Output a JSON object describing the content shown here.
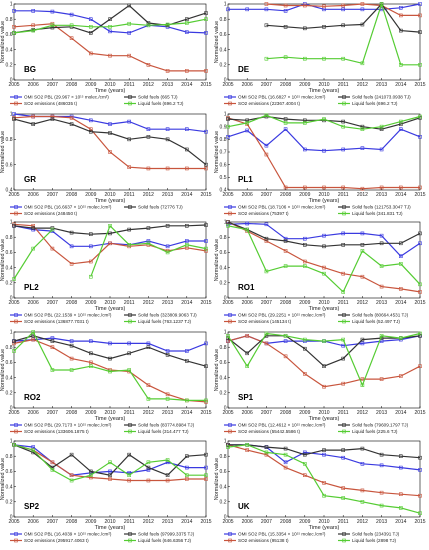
{
  "figure": {
    "ylabel": "Normalized value",
    "xlabel": "Time (years)",
    "colors": {
      "omi": "#3a3ae0",
      "so2": "#c8553d",
      "solid": "#333333",
      "liquid": "#55cc33"
    }
  },
  "chart_data": [
    {
      "type": "line",
      "panel": "BG",
      "x": [
        2005,
        2006,
        2007,
        2008,
        2009,
        2010,
        2011,
        2012,
        2013,
        2014,
        2015
      ],
      "ylim": [
        0,
        1
      ],
      "yticks": [
        "0",
        "0.2",
        "0.4",
        "0.6",
        "0.8",
        "1"
      ],
      "series": [
        {
          "key": "omi",
          "values": [
            0.91,
            0.91,
            0.9,
            0.86,
            0.8,
            0.64,
            0.62,
            0.72,
            0.7,
            0.63,
            0.62
          ],
          "legend": "OMI SO2 PBL (29.967 × 10¹⁵ molec./cm²)"
        },
        {
          "key": "so2",
          "values": [
            0.7,
            0.72,
            0.74,
            0.55,
            0.35,
            0.32,
            0.32,
            0.2,
            0.12,
            0.12,
            0.12
          ],
          "legend": "SO2 emissions (486035 t)"
        },
        {
          "key": "solid",
          "values": [
            0.62,
            0.66,
            0.69,
            0.7,
            0.62,
            0.8,
            0.98,
            0.75,
            0.72,
            0.8,
            0.88
          ],
          "legend": "Solid fuels (665 TJ)"
        },
        {
          "key": "liquid",
          "values": [
            0.62,
            0.65,
            0.72,
            0.72,
            0.7,
            0.7,
            0.74,
            0.72,
            0.73,
            0.75,
            0.8
          ],
          "legend": "Liquid fuels (696.2 TJ)"
        }
      ]
    },
    {
      "type": "line",
      "panel": "DE",
      "x": [
        2005,
        2006,
        2007,
        2008,
        2009,
        2010,
        2011,
        2012,
        2013,
        2014,
        2015
      ],
      "ylim": [
        0,
        1
      ],
      "yticks": [
        "0",
        "0.2",
        "0.4",
        "0.6",
        "0.8",
        "1"
      ],
      "series": [
        {
          "key": "omi",
          "values": [
            0.93,
            0.93,
            0.93,
            0.91,
            1.0,
            0.93,
            0.93,
            0.93,
            0.93,
            0.95,
            1.0
          ],
          "legend": "OMI SO2 PBL (16.6827 × 10¹⁵ molec./cm²)"
        },
        {
          "key": "so2",
          "values": [
            null,
            null,
            1.0,
            0.98,
            0.98,
            0.97,
            0.98,
            1.0,
            0.98,
            0.85,
            0.85
          ],
          "legend": "SO2 emissions (22367.4004 t)"
        },
        {
          "key": "solid",
          "values": [
            null,
            null,
            0.72,
            0.7,
            0.68,
            0.7,
            0.72,
            0.73,
            1.0,
            0.65,
            0.63
          ],
          "legend": "Solid fuels (241073.0938 TJ)"
        },
        {
          "key": "liquid",
          "values": [
            null,
            null,
            0.28,
            0.3,
            0.28,
            0.28,
            0.28,
            0.22,
            1.0,
            0.2,
            0.2
          ],
          "legend": "Liquid fuels (696.2 TJ)"
        }
      ]
    },
    {
      "type": "line",
      "panel": "GR",
      "x": [
        2005,
        2006,
        2007,
        2008,
        2009,
        2010,
        2011,
        2012,
        2013,
        2014,
        2015
      ],
      "ylim": [
        0.4,
        1
      ],
      "yticks": [
        "0.4",
        "0.6",
        "0.8",
        "1"
      ],
      "series": [
        {
          "key": "omi",
          "values": [
            1.0,
            0.98,
            0.98,
            0.98,
            0.95,
            0.92,
            0.94,
            0.88,
            0.88,
            0.88,
            0.86
          ],
          "legend": "OMI SO2 PBL (16.6637 × 10¹⁵ molec./cm²)"
        },
        {
          "key": "so2",
          "values": [
            0.97,
            0.98,
            0.98,
            0.97,
            0.88,
            0.7,
            0.58,
            0.57,
            0.57,
            0.57,
            0.57
          ],
          "legend": "SO2 emissions (248450 t)"
        },
        {
          "key": "solid",
          "values": [
            0.96,
            0.92,
            0.96,
            0.92,
            0.86,
            0.85,
            0.8,
            0.82,
            0.8,
            0.72,
            0.6
          ],
          "legend": "Solid fuels (72776 TJ)"
        }
      ]
    },
    {
      "type": "line",
      "panel": "PL1",
      "x": [
        2005,
        2006,
        2007,
        2008,
        2009,
        2010,
        2011,
        2012,
        2013,
        2014,
        2015
      ],
      "ylim": [
        0.4,
        1
      ],
      "yticks": [
        "0.4",
        "0.5",
        "0.6",
        "0.7",
        "0.8",
        "0.9",
        "1"
      ],
      "series": [
        {
          "key": "omi",
          "values": [
            0.82,
            0.87,
            0.75,
            0.88,
            0.72,
            0.71,
            0.72,
            0.73,
            0.72,
            0.88,
            0.82
          ],
          "legend": "OMI SO2 PBL (18.7106 × 10¹⁵ molec./cm²)"
        },
        {
          "key": "so2",
          "values": [
            0.97,
            0.92,
            0.68,
            0.42,
            0.42,
            0.42,
            0.42,
            0.41,
            0.42,
            0.42,
            0.42
          ],
          "legend": "SO2 emissions (75397 t)"
        },
        {
          "key": "solid",
          "values": [
            0.96,
            0.95,
            0.98,
            0.96,
            0.95,
            0.95,
            0.94,
            0.9,
            0.88,
            0.92,
            0.97
          ],
          "legend": "Solid fuels (121753.3047 TJ)"
        },
        {
          "key": "liquid",
          "values": [
            0.9,
            0.93,
            0.99,
            0.93,
            0.93,
            0.96,
            0.9,
            0.88,
            0.9,
            0.94,
            0.98
          ],
          "legend": "Liquid fuels (341.831 TJ)"
        }
      ]
    },
    {
      "type": "line",
      "panel": "PL2",
      "x": [
        2005,
        2006,
        2007,
        2008,
        2009,
        2010,
        2011,
        2012,
        2013,
        2014,
        2015
      ],
      "ylim": [
        0,
        1
      ],
      "yticks": [
        "0",
        "0.2",
        "0.4",
        "0.6",
        "0.8",
        "1"
      ],
      "series": [
        {
          "key": "omi",
          "values": [
            0.95,
            0.9,
            0.88,
            0.68,
            0.68,
            0.72,
            0.7,
            0.75,
            0.68,
            0.75,
            0.75
          ],
          "legend": "OMI SO2 PBL (22.1539 × 10¹⁵ molec./cm²)"
        },
        {
          "key": "so2",
          "values": [
            0.97,
            0.95,
            0.65,
            0.45,
            0.48,
            0.72,
            0.68,
            0.7,
            0.62,
            0.66,
            0.62
          ],
          "legend": "SO2 emissions (136877.7031 t)"
        },
        {
          "key": "solid",
          "values": [
            0.95,
            0.92,
            0.92,
            0.86,
            0.84,
            0.85,
            0.9,
            0.92,
            0.95,
            0.95,
            0.96
          ],
          "legend": "Solid fuels (323809.9063 TJ)"
        },
        {
          "key": "liquid",
          "values": [
            0.25,
            0.65,
            0.9,
            null,
            0.28,
            0.95,
            0.7,
            0.72,
            0.6,
            0.7,
            0.65
          ],
          "legend": "Liquid fuels (763.1237 TJ)"
        }
      ]
    },
    {
      "type": "line",
      "panel": "RO1",
      "x": [
        2005,
        2006,
        2007,
        2008,
        2009,
        2010,
        2011,
        2012,
        2013,
        2014,
        2015
      ],
      "ylim": [
        0,
        1
      ],
      "yticks": [
        "0",
        "0.2",
        "0.4",
        "0.6",
        "0.8",
        "1"
      ],
      "series": [
        {
          "key": "omi",
          "values": [
            0.97,
            0.98,
            0.97,
            0.78,
            0.78,
            0.82,
            0.85,
            0.85,
            0.82,
            0.55,
            0.72
          ],
          "legend": "OMI SO2 PBL (29.2251 × 10¹⁵ molec./cm²)"
        },
        {
          "key": "so2",
          "values": [
            1.0,
            0.88,
            0.75,
            0.62,
            0.48,
            0.4,
            0.32,
            0.28,
            0.15,
            0.12,
            0.08
          ],
          "legend": "SO2 emissions (145134 t)"
        },
        {
          "key": "solid",
          "values": [
            1.0,
            0.9,
            0.78,
            0.75,
            0.7,
            0.68,
            0.7,
            0.7,
            0.72,
            0.72,
            0.85
          ],
          "legend": "Solid fuels (80664.4531 TJ)"
        },
        {
          "key": "liquid",
          "values": [
            0.95,
            0.9,
            0.35,
            0.42,
            0.42,
            0.32,
            0.08,
            0.62,
            0.42,
            0.45,
            0.18
          ],
          "legend": "Liquid fuels (52.497 TJ)"
        }
      ]
    },
    {
      "type": "line",
      "panel": "RO2",
      "x": [
        2005,
        2006,
        2007,
        2008,
        2009,
        2010,
        2011,
        2012,
        2013,
        2014,
        2015
      ],
      "ylim": [
        0,
        1
      ],
      "yticks": [
        "0",
        "0.2",
        "0.4",
        "0.6",
        "0.8",
        "1"
      ],
      "series": [
        {
          "key": "omi",
          "values": [
            0.88,
            0.9,
            0.92,
            0.88,
            0.88,
            0.85,
            0.85,
            0.85,
            0.75,
            0.75,
            0.85
          ],
          "legend": "OMI SO2 PBL (29.7173 × 10¹⁵ molec./cm²)"
        },
        {
          "key": "so2",
          "values": [
            0.85,
            0.9,
            0.8,
            0.65,
            0.6,
            0.5,
            0.48,
            0.3,
            0.18,
            0.1,
            0.08
          ],
          "legend": "SO2 emissions (133606.1875 t)"
        },
        {
          "key": "solid",
          "values": [
            0.88,
            0.95,
            0.88,
            0.82,
            0.72,
            0.65,
            0.72,
            0.8,
            0.7,
            0.62,
            0.55
          ],
          "legend": "Solid fuels (83774.8984 TJ)"
        },
        {
          "key": "liquid",
          "values": [
            0.75,
            1.0,
            0.5,
            0.5,
            0.55,
            0.48,
            0.5,
            0.12,
            0.12,
            0.1,
            0.1
          ],
          "legend": "Liquid fuels (314.477 TJ)"
        }
      ]
    },
    {
      "type": "line",
      "panel": "SP1",
      "x": [
        2005,
        2006,
        2007,
        2008,
        2009,
        2010,
        2011,
        2012,
        2013,
        2014,
        2015
      ],
      "ylim": [
        0,
        1
      ],
      "yticks": [
        "0",
        "0.2",
        "0.4",
        "0.6",
        "0.8",
        "1"
      ],
      "series": [
        {
          "key": "omi",
          "values": [
            0.88,
            0.95,
            0.85,
            0.88,
            0.88,
            0.88,
            0.82,
            0.85,
            0.88,
            0.9,
            0.95
          ],
          "legend": "OMI SO2 PBL (12.4612 × 10¹⁵ molec./cm²)"
        },
        {
          "key": "so2",
          "values": [
            0.88,
            0.95,
            0.85,
            0.68,
            0.45,
            0.28,
            0.32,
            0.38,
            0.38,
            0.42,
            0.55
          ],
          "legend": "SO2 emissions (55442.5586 t)"
        },
        {
          "key": "solid",
          "values": [
            0.92,
            0.72,
            0.95,
            0.95,
            0.78,
            0.55,
            0.65,
            0.9,
            0.92,
            0.92,
            0.95
          ],
          "legend": "Solid fuels (79609.1797 TJ)"
        },
        {
          "key": "liquid",
          "values": [
            0.95,
            0.55,
            0.98,
            0.95,
            0.9,
            0.88,
            0.9,
            0.3,
            0.95,
            0.92,
            0.98
          ],
          "legend": "Liquid fuels (225.6 TJ)"
        }
      ]
    },
    {
      "type": "line",
      "panel": "SP2",
      "x": [
        2005,
        2006,
        2007,
        2008,
        2009,
        2010,
        2011,
        2012,
        2013,
        2014,
        2015
      ],
      "ylim": [
        0,
        1
      ],
      "yticks": [
        "0",
        "0.2",
        "0.4",
        "0.6",
        "0.8",
        "1"
      ],
      "series": [
        {
          "key": "omi",
          "values": [
            0.95,
            0.92,
            0.72,
            0.55,
            0.58,
            0.6,
            0.58,
            0.62,
            0.72,
            0.65,
            0.65
          ],
          "legend": "OMI SO2 PBL (16.4039 × 10¹⁵ molec./cm²)"
        },
        {
          "key": "so2",
          "values": [
            0.95,
            0.88,
            0.72,
            0.55,
            0.52,
            0.5,
            0.48,
            0.48,
            0.48,
            0.5,
            0.5
          ],
          "legend": "SO2 emissions (295917.4063 t)"
        },
        {
          "key": "solid",
          "values": [
            0.95,
            0.85,
            0.65,
            0.82,
            0.6,
            0.55,
            0.82,
            0.65,
            0.55,
            0.8,
            0.82
          ],
          "legend": "Solid fuels (97999.3375 TJ)"
        },
        {
          "key": "liquid",
          "values": [
            0.95,
            0.88,
            0.62,
            0.48,
            0.55,
            0.72,
            0.55,
            0.72,
            0.75,
            0.55,
            0.55
          ],
          "legend": "Liquid fuels (646.6356 TJ)"
        }
      ]
    },
    {
      "type": "line",
      "panel": "UK",
      "x": [
        2005,
        2006,
        2007,
        2008,
        2009,
        2010,
        2011,
        2012,
        2013,
        2014,
        2015
      ],
      "ylim": [
        0,
        1
      ],
      "yticks": [
        "0",
        "0.2",
        "0.4",
        "0.6",
        "0.8",
        "1"
      ],
      "series": [
        {
          "key": "omi",
          "values": [
            0.95,
            0.95,
            0.92,
            0.72,
            0.85,
            0.82,
            0.78,
            0.7,
            0.68,
            0.65,
            0.62
          ],
          "legend": "OMI SO2 PBL (15.3354 × 10¹⁵ molec./cm²)"
        },
        {
          "key": "so2",
          "values": [
            0.95,
            0.88,
            0.82,
            0.65,
            0.55,
            0.45,
            0.38,
            0.35,
            0.32,
            0.3,
            0.28
          ],
          "legend": "SO2 emissions (95138 t)"
        },
        {
          "key": "solid",
          "values": [
            0.95,
            0.95,
            0.92,
            0.9,
            0.82,
            0.88,
            0.88,
            0.9,
            0.82,
            0.8,
            0.78
          ],
          "legend": "Solid fuels (234391 TJ)"
        },
        {
          "key": "liquid",
          "values": [
            0.92,
            0.95,
            0.85,
            0.82,
            0.7,
            0.28,
            0.25,
            0.2,
            0.15,
            0.12,
            0.05
          ],
          "legend": "Liquid fuels (2898 TJ)"
        }
      ]
    }
  ]
}
